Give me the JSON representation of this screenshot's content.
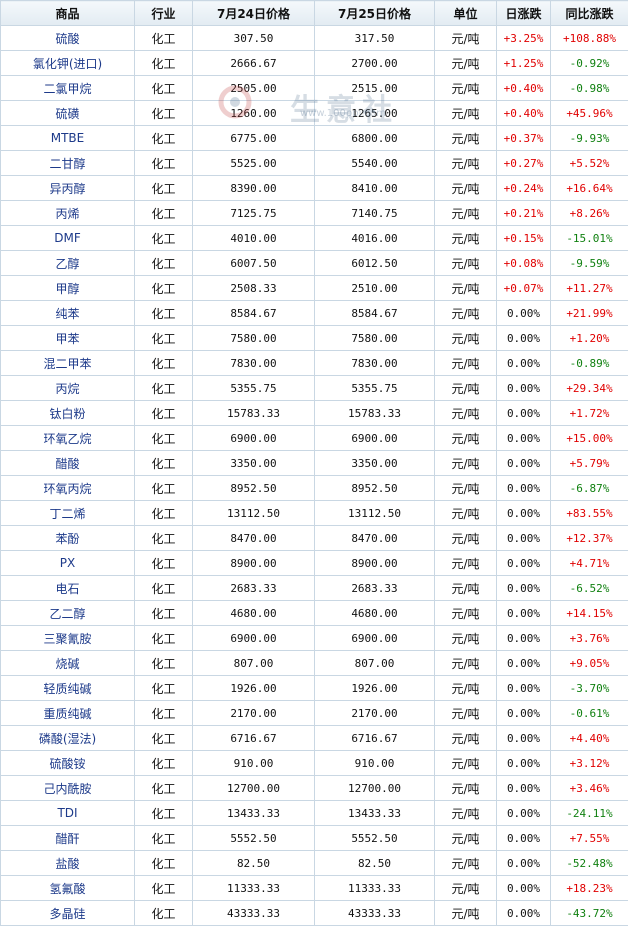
{
  "headers": {
    "product": "商品",
    "industry": "行业",
    "price1": "7月24日价格",
    "price2": "7月25日价格",
    "unit": "单位",
    "daily": "日涨跌",
    "yoy": "同比涨跌"
  },
  "watermark": {
    "text": "生意社",
    "url": "www.100ppi.com"
  },
  "colors": {
    "up": "#e00000",
    "down": "#108010",
    "header_bg": "#e2ebf2",
    "border": "#c9d7e3",
    "name": "#1d3a8a"
  },
  "rows": [
    {
      "name": "硫酸",
      "industry": "化工",
      "p1": "307.50",
      "p2": "317.50",
      "unit": "元/吨",
      "daily": "+3.25%",
      "yoy": "+108.88%"
    },
    {
      "name": "氯化钾(进口)",
      "industry": "化工",
      "p1": "2666.67",
      "p2": "2700.00",
      "unit": "元/吨",
      "daily": "+1.25%",
      "yoy": "-0.92%"
    },
    {
      "name": "二氯甲烷",
      "industry": "化工",
      "p1": "2505.00",
      "p2": "2515.00",
      "unit": "元/吨",
      "daily": "+0.40%",
      "yoy": "-0.98%"
    },
    {
      "name": "硫磺",
      "industry": "化工",
      "p1": "1260.00",
      "p2": "1265.00",
      "unit": "元/吨",
      "daily": "+0.40%",
      "yoy": "+45.96%"
    },
    {
      "name": "MTBE",
      "industry": "化工",
      "p1": "6775.00",
      "p2": "6800.00",
      "unit": "元/吨",
      "daily": "+0.37%",
      "yoy": "-9.93%"
    },
    {
      "name": "二甘醇",
      "industry": "化工",
      "p1": "5525.00",
      "p2": "5540.00",
      "unit": "元/吨",
      "daily": "+0.27%",
      "yoy": "+5.52%"
    },
    {
      "name": "异丙醇",
      "industry": "化工",
      "p1": "8390.00",
      "p2": "8410.00",
      "unit": "元/吨",
      "daily": "+0.24%",
      "yoy": "+16.64%"
    },
    {
      "name": "丙烯",
      "industry": "化工",
      "p1": "7125.75",
      "p2": "7140.75",
      "unit": "元/吨",
      "daily": "+0.21%",
      "yoy": "+8.26%"
    },
    {
      "name": "DMF",
      "industry": "化工",
      "p1": "4010.00",
      "p2": "4016.00",
      "unit": "元/吨",
      "daily": "+0.15%",
      "yoy": "-15.01%"
    },
    {
      "name": "乙醇",
      "industry": "化工",
      "p1": "6007.50",
      "p2": "6012.50",
      "unit": "元/吨",
      "daily": "+0.08%",
      "yoy": "-9.59%"
    },
    {
      "name": "甲醇",
      "industry": "化工",
      "p1": "2508.33",
      "p2": "2510.00",
      "unit": "元/吨",
      "daily": "+0.07%",
      "yoy": "+11.27%"
    },
    {
      "name": "纯苯",
      "industry": "化工",
      "p1": "8584.67",
      "p2": "8584.67",
      "unit": "元/吨",
      "daily": "0.00%",
      "yoy": "+21.99%"
    },
    {
      "name": "甲苯",
      "industry": "化工",
      "p1": "7580.00",
      "p2": "7580.00",
      "unit": "元/吨",
      "daily": "0.00%",
      "yoy": "+1.20%"
    },
    {
      "name": "混二甲苯",
      "industry": "化工",
      "p1": "7830.00",
      "p2": "7830.00",
      "unit": "元/吨",
      "daily": "0.00%",
      "yoy": "-0.89%"
    },
    {
      "name": "丙烷",
      "industry": "化工",
      "p1": "5355.75",
      "p2": "5355.75",
      "unit": "元/吨",
      "daily": "0.00%",
      "yoy": "+29.34%"
    },
    {
      "name": "钛白粉",
      "industry": "化工",
      "p1": "15783.33",
      "p2": "15783.33",
      "unit": "元/吨",
      "daily": "0.00%",
      "yoy": "+1.72%"
    },
    {
      "name": "环氧乙烷",
      "industry": "化工",
      "p1": "6900.00",
      "p2": "6900.00",
      "unit": "元/吨",
      "daily": "0.00%",
      "yoy": "+15.00%"
    },
    {
      "name": "醋酸",
      "industry": "化工",
      "p1": "3350.00",
      "p2": "3350.00",
      "unit": "元/吨",
      "daily": "0.00%",
      "yoy": "+5.79%"
    },
    {
      "name": "环氧丙烷",
      "industry": "化工",
      "p1": "8952.50",
      "p2": "8952.50",
      "unit": "元/吨",
      "daily": "0.00%",
      "yoy": "-6.87%"
    },
    {
      "name": "丁二烯",
      "industry": "化工",
      "p1": "13112.50",
      "p2": "13112.50",
      "unit": "元/吨",
      "daily": "0.00%",
      "yoy": "+83.55%"
    },
    {
      "name": "苯酚",
      "industry": "化工",
      "p1": "8470.00",
      "p2": "8470.00",
      "unit": "元/吨",
      "daily": "0.00%",
      "yoy": "+12.37%"
    },
    {
      "name": "PX",
      "industry": "化工",
      "p1": "8900.00",
      "p2": "8900.00",
      "unit": "元/吨",
      "daily": "0.00%",
      "yoy": "+4.71%"
    },
    {
      "name": "电石",
      "industry": "化工",
      "p1": "2683.33",
      "p2": "2683.33",
      "unit": "元/吨",
      "daily": "0.00%",
      "yoy": "-6.52%"
    },
    {
      "name": "乙二醇",
      "industry": "化工",
      "p1": "4680.00",
      "p2": "4680.00",
      "unit": "元/吨",
      "daily": "0.00%",
      "yoy": "+14.15%"
    },
    {
      "name": "三聚氰胺",
      "industry": "化工",
      "p1": "6900.00",
      "p2": "6900.00",
      "unit": "元/吨",
      "daily": "0.00%",
      "yoy": "+3.76%"
    },
    {
      "name": "烧碱",
      "industry": "化工",
      "p1": "807.00",
      "p2": "807.00",
      "unit": "元/吨",
      "daily": "0.00%",
      "yoy": "+9.05%"
    },
    {
      "name": "轻质纯碱",
      "industry": "化工",
      "p1": "1926.00",
      "p2": "1926.00",
      "unit": "元/吨",
      "daily": "0.00%",
      "yoy": "-3.70%"
    },
    {
      "name": "重质纯碱",
      "industry": "化工",
      "p1": "2170.00",
      "p2": "2170.00",
      "unit": "元/吨",
      "daily": "0.00%",
      "yoy": "-0.61%"
    },
    {
      "name": "磷酸(湿法)",
      "industry": "化工",
      "p1": "6716.67",
      "p2": "6716.67",
      "unit": "元/吨",
      "daily": "0.00%",
      "yoy": "+4.40%"
    },
    {
      "name": "硫酸铵",
      "industry": "化工",
      "p1": "910.00",
      "p2": "910.00",
      "unit": "元/吨",
      "daily": "0.00%",
      "yoy": "+3.12%"
    },
    {
      "name": "己内酰胺",
      "industry": "化工",
      "p1": "12700.00",
      "p2": "12700.00",
      "unit": "元/吨",
      "daily": "0.00%",
      "yoy": "+3.46%"
    },
    {
      "name": "TDI",
      "industry": "化工",
      "p1": "13433.33",
      "p2": "13433.33",
      "unit": "元/吨",
      "daily": "0.00%",
      "yoy": "-24.11%"
    },
    {
      "name": "醋酐",
      "industry": "化工",
      "p1": "5552.50",
      "p2": "5552.50",
      "unit": "元/吨",
      "daily": "0.00%",
      "yoy": "+7.55%"
    },
    {
      "name": "盐酸",
      "industry": "化工",
      "p1": "82.50",
      "p2": "82.50",
      "unit": "元/吨",
      "daily": "0.00%",
      "yoy": "-52.48%"
    },
    {
      "name": "氢氟酸",
      "industry": "化工",
      "p1": "11333.33",
      "p2": "11333.33",
      "unit": "元/吨",
      "daily": "0.00%",
      "yoy": "+18.23%"
    },
    {
      "name": "多晶硅",
      "industry": "化工",
      "p1": "43333.33",
      "p2": "43333.33",
      "unit": "元/吨",
      "daily": "0.00%",
      "yoy": "-43.72%"
    }
  ]
}
